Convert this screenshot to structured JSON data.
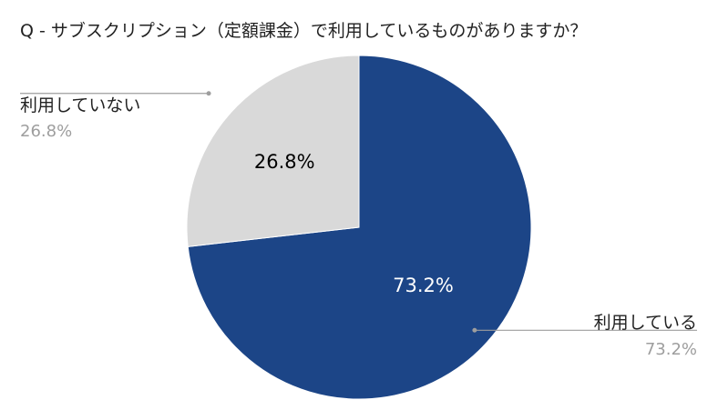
{
  "chart_data": {
    "type": "pie",
    "title": "Q - サブスクリプション（定額課金）で利用しているものがありますか？",
    "slices": [
      {
        "name": "利用している",
        "value": 73.2,
        "label": "73.2%",
        "color": "#1c4587",
        "text_color": "#ffffff"
      },
      {
        "name": "利用していない",
        "value": 26.8,
        "label": "26.8%",
        "color": "#d9d9d9",
        "text_color": "#000000"
      }
    ],
    "legend_placement": "outside-labels",
    "start_angle": "top",
    "direction": "clockwise"
  }
}
